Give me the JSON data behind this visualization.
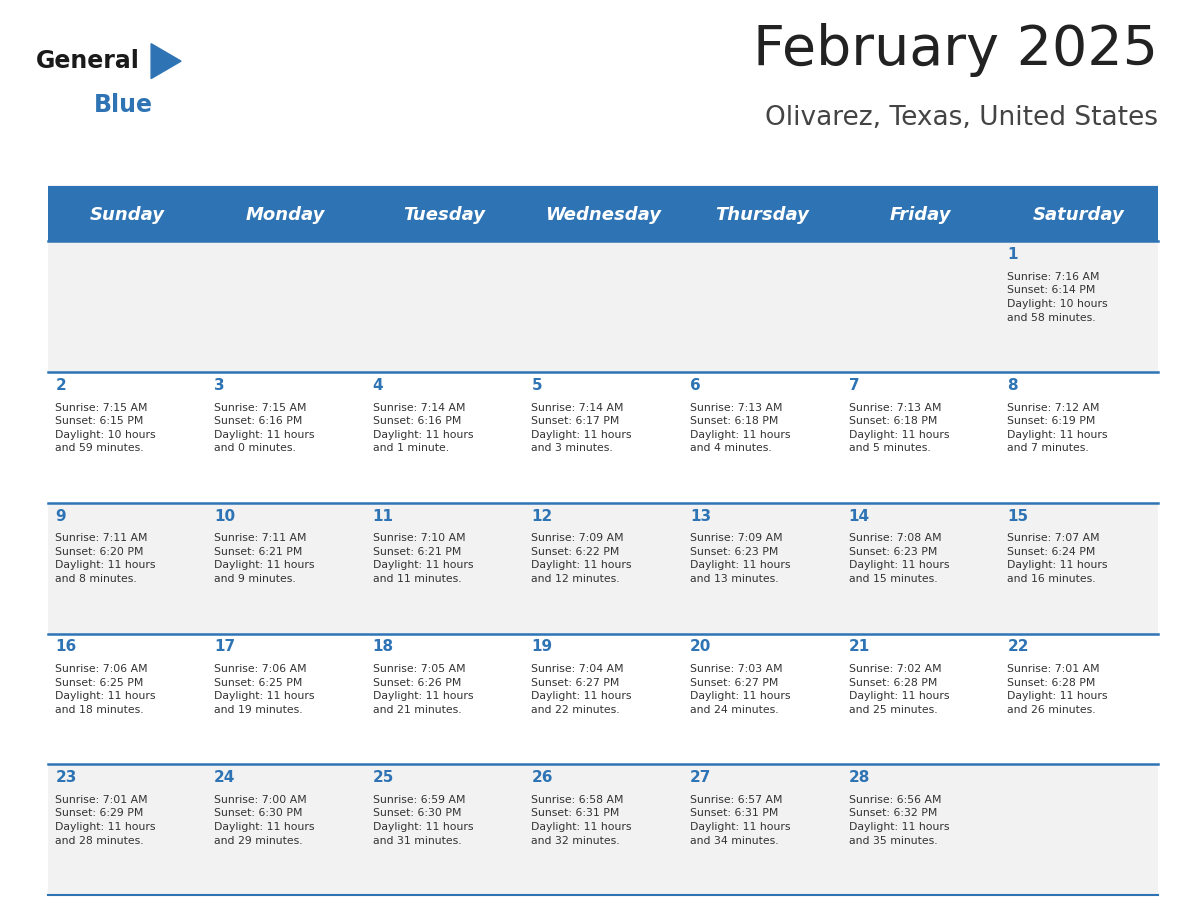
{
  "title": "February 2025",
  "subtitle": "Olivarez, Texas, United States",
  "header_bg": "#2E74B5",
  "header_text_color": "#FFFFFF",
  "cell_bg_odd": "#F2F2F2",
  "cell_bg_even": "#FFFFFF",
  "day_number_color": "#2E74B5",
  "text_color": "#333333",
  "line_color": "#2E74B5",
  "days_of_week": [
    "Sunday",
    "Monday",
    "Tuesday",
    "Wednesday",
    "Thursday",
    "Friday",
    "Saturday"
  ],
  "weeks": [
    [
      {
        "day": "",
        "info": ""
      },
      {
        "day": "",
        "info": ""
      },
      {
        "day": "",
        "info": ""
      },
      {
        "day": "",
        "info": ""
      },
      {
        "day": "",
        "info": ""
      },
      {
        "day": "",
        "info": ""
      },
      {
        "day": "1",
        "info": "Sunrise: 7:16 AM\nSunset: 6:14 PM\nDaylight: 10 hours\nand 58 minutes."
      }
    ],
    [
      {
        "day": "2",
        "info": "Sunrise: 7:15 AM\nSunset: 6:15 PM\nDaylight: 10 hours\nand 59 minutes."
      },
      {
        "day": "3",
        "info": "Sunrise: 7:15 AM\nSunset: 6:16 PM\nDaylight: 11 hours\nand 0 minutes."
      },
      {
        "day": "4",
        "info": "Sunrise: 7:14 AM\nSunset: 6:16 PM\nDaylight: 11 hours\nand 1 minute."
      },
      {
        "day": "5",
        "info": "Sunrise: 7:14 AM\nSunset: 6:17 PM\nDaylight: 11 hours\nand 3 minutes."
      },
      {
        "day": "6",
        "info": "Sunrise: 7:13 AM\nSunset: 6:18 PM\nDaylight: 11 hours\nand 4 minutes."
      },
      {
        "day": "7",
        "info": "Sunrise: 7:13 AM\nSunset: 6:18 PM\nDaylight: 11 hours\nand 5 minutes."
      },
      {
        "day": "8",
        "info": "Sunrise: 7:12 AM\nSunset: 6:19 PM\nDaylight: 11 hours\nand 7 minutes."
      }
    ],
    [
      {
        "day": "9",
        "info": "Sunrise: 7:11 AM\nSunset: 6:20 PM\nDaylight: 11 hours\nand 8 minutes."
      },
      {
        "day": "10",
        "info": "Sunrise: 7:11 AM\nSunset: 6:21 PM\nDaylight: 11 hours\nand 9 minutes."
      },
      {
        "day": "11",
        "info": "Sunrise: 7:10 AM\nSunset: 6:21 PM\nDaylight: 11 hours\nand 11 minutes."
      },
      {
        "day": "12",
        "info": "Sunrise: 7:09 AM\nSunset: 6:22 PM\nDaylight: 11 hours\nand 12 minutes."
      },
      {
        "day": "13",
        "info": "Sunrise: 7:09 AM\nSunset: 6:23 PM\nDaylight: 11 hours\nand 13 minutes."
      },
      {
        "day": "14",
        "info": "Sunrise: 7:08 AM\nSunset: 6:23 PM\nDaylight: 11 hours\nand 15 minutes."
      },
      {
        "day": "15",
        "info": "Sunrise: 7:07 AM\nSunset: 6:24 PM\nDaylight: 11 hours\nand 16 minutes."
      }
    ],
    [
      {
        "day": "16",
        "info": "Sunrise: 7:06 AM\nSunset: 6:25 PM\nDaylight: 11 hours\nand 18 minutes."
      },
      {
        "day": "17",
        "info": "Sunrise: 7:06 AM\nSunset: 6:25 PM\nDaylight: 11 hours\nand 19 minutes."
      },
      {
        "day": "18",
        "info": "Sunrise: 7:05 AM\nSunset: 6:26 PM\nDaylight: 11 hours\nand 21 minutes."
      },
      {
        "day": "19",
        "info": "Sunrise: 7:04 AM\nSunset: 6:27 PM\nDaylight: 11 hours\nand 22 minutes."
      },
      {
        "day": "20",
        "info": "Sunrise: 7:03 AM\nSunset: 6:27 PM\nDaylight: 11 hours\nand 24 minutes."
      },
      {
        "day": "21",
        "info": "Sunrise: 7:02 AM\nSunset: 6:28 PM\nDaylight: 11 hours\nand 25 minutes."
      },
      {
        "day": "22",
        "info": "Sunrise: 7:01 AM\nSunset: 6:28 PM\nDaylight: 11 hours\nand 26 minutes."
      }
    ],
    [
      {
        "day": "23",
        "info": "Sunrise: 7:01 AM\nSunset: 6:29 PM\nDaylight: 11 hours\nand 28 minutes."
      },
      {
        "day": "24",
        "info": "Sunrise: 7:00 AM\nSunset: 6:30 PM\nDaylight: 11 hours\nand 29 minutes."
      },
      {
        "day": "25",
        "info": "Sunrise: 6:59 AM\nSunset: 6:30 PM\nDaylight: 11 hours\nand 31 minutes."
      },
      {
        "day": "26",
        "info": "Sunrise: 6:58 AM\nSunset: 6:31 PM\nDaylight: 11 hours\nand 32 minutes."
      },
      {
        "day": "27",
        "info": "Sunrise: 6:57 AM\nSunset: 6:31 PM\nDaylight: 11 hours\nand 34 minutes."
      },
      {
        "day": "28",
        "info": "Sunrise: 6:56 AM\nSunset: 6:32 PM\nDaylight: 11 hours\nand 35 minutes."
      },
      {
        "day": "",
        "info": ""
      }
    ]
  ],
  "logo_text_general": "General",
  "logo_text_blue": "Blue",
  "logo_color_general": "#1a1a1a",
  "logo_color_blue": "#2E74B5",
  "logo_triangle_color": "#2E74B5",
  "n_cols": 7,
  "n_rows": 5
}
